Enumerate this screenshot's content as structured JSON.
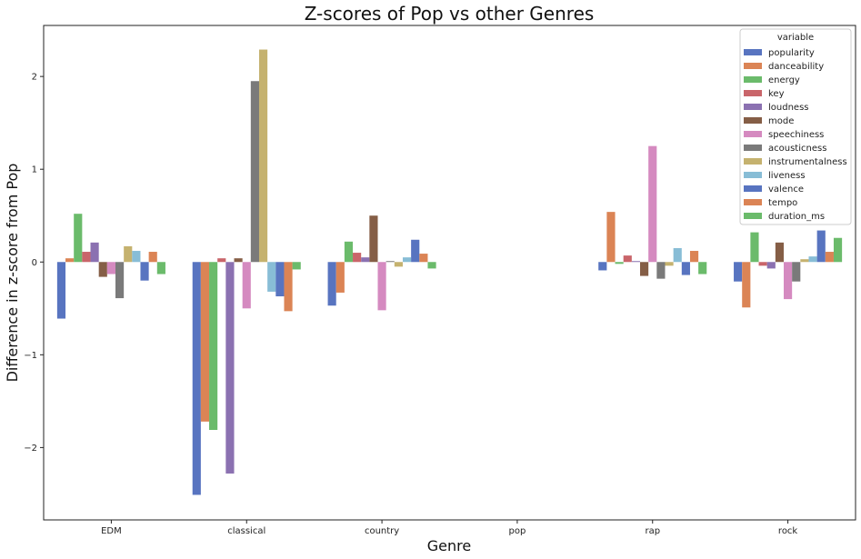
{
  "chart_data": {
    "type": "bar",
    "title": "Z-scores of Pop vs other Genres",
    "xlabel": "Genre",
    "ylabel": "Difference in z-score from Pop",
    "categories": [
      "EDM",
      "classical",
      "country",
      "pop",
      "rap",
      "rock"
    ],
    "ylim": [
      -2.78,
      2.55
    ],
    "yticks": [
      -2,
      -1,
      0,
      1,
      2
    ],
    "ytick_labels": [
      "−2",
      "−1",
      "0",
      "1",
      "2"
    ],
    "legend": {
      "title": "variable",
      "position": "top-right"
    },
    "grid": false,
    "series": [
      {
        "name": "popularity",
        "color": "#5874c0",
        "values": [
          -0.61,
          -2.51,
          -0.47,
          0.0,
          -0.09,
          -0.21
        ]
      },
      {
        "name": "danceability",
        "color": "#db8455",
        "values": [
          0.04,
          -1.72,
          -0.33,
          0.0,
          0.54,
          -0.49
        ]
      },
      {
        "name": "energy",
        "color": "#6bbb6b",
        "values": [
          0.52,
          -1.81,
          0.22,
          0.0,
          -0.02,
          0.32
        ]
      },
      {
        "name": "key",
        "color": "#c9656a",
        "values": [
          0.11,
          0.04,
          0.1,
          0.0,
          0.07,
          -0.04
        ]
      },
      {
        "name": "loudness",
        "color": "#8b71b1",
        "values": [
          0.21,
          -2.28,
          0.05,
          0.0,
          0.01,
          -0.07
        ]
      },
      {
        "name": "mode",
        "color": "#855e46",
        "values": [
          -0.16,
          0.04,
          0.5,
          0.0,
          -0.15,
          0.21
        ]
      },
      {
        "name": "speechiness",
        "color": "#d58ac0",
        "values": [
          -0.13,
          -0.5,
          -0.52,
          0.0,
          1.25,
          -0.4
        ]
      },
      {
        "name": "acousticness",
        "color": "#7a7a7a",
        "values": [
          -0.39,
          1.95,
          0.01,
          0.0,
          -0.18,
          -0.21
        ]
      },
      {
        "name": "instrumentalness",
        "color": "#c5b26f",
        "values": [
          0.17,
          2.29,
          -0.05,
          0.0,
          -0.04,
          0.03
        ]
      },
      {
        "name": "liveness",
        "color": "#88bdd6",
        "values": [
          0.12,
          -0.32,
          0.05,
          0.0,
          0.15,
          0.06
        ]
      },
      {
        "name": "valence",
        "color": "#5874c0",
        "values": [
          -0.2,
          -0.37,
          0.24,
          0.0,
          -0.14,
          0.34
        ]
      },
      {
        "name": "tempo",
        "color": "#db8455",
        "values": [
          0.11,
          -0.53,
          0.09,
          0.0,
          0.12,
          0.11
        ]
      },
      {
        "name": "duration_ms",
        "color": "#6bbb6b",
        "values": [
          -0.13,
          -0.08,
          -0.07,
          0.0,
          -0.13,
          0.26
        ]
      }
    ]
  }
}
